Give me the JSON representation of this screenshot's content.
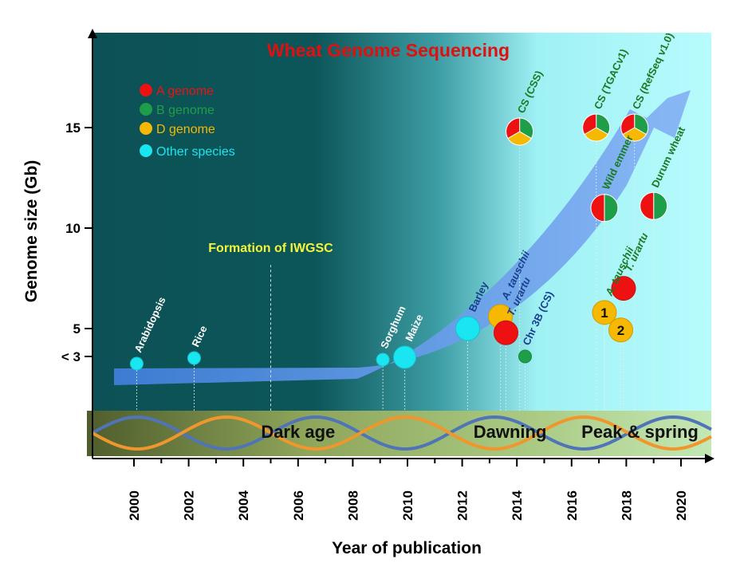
{
  "chart_data": {
    "type": "scatter",
    "title": "Wheat Genome Sequencing",
    "xlabel": "Year of publication",
    "ylabel": "Genome size (Gb)",
    "xlim": [
      2000,
      2020
    ],
    "x_ticks": [
      "2000",
      "2002",
      "2004",
      "2006",
      "2008",
      "2010",
      "2012",
      "2014",
      "2016",
      "2018",
      "2020"
    ],
    "y_ticks": [
      {
        "value": 3,
        "label": "< 3"
      },
      {
        "value": 5,
        "label": "5"
      },
      {
        "value": 10,
        "label": "10"
      },
      {
        "value": 15,
        "label": "15"
      }
    ],
    "legend": [
      {
        "name": "A genome",
        "color": "#ee1111"
      },
      {
        "name": "B genome",
        "color": "#1f9e4a"
      },
      {
        "name": "D genome",
        "color": "#f6b800"
      },
      {
        "name": "Other species",
        "color": "#19e6f0"
      }
    ],
    "legend_position": "top-left",
    "points": [
      {
        "label": "Arabidopsis",
        "x": 2000.1,
        "y": 2.1,
        "kind": "other",
        "size": "small",
        "label_color": "#ffffff"
      },
      {
        "label": "Rice",
        "x": 2002.2,
        "y": 2.8,
        "kind": "other",
        "size": "small",
        "label_color": "#ffffff"
      },
      {
        "label": "Sorghum",
        "x": 2009.1,
        "y": 2.6,
        "kind": "other",
        "size": "small",
        "label_color": "#ffffff"
      },
      {
        "label": "Maize",
        "x": 2009.9,
        "y": 2.9,
        "kind": "other",
        "size": "medium",
        "label_color": "#ffffff"
      },
      {
        "label": "Barley",
        "x": 2012.2,
        "y": 5.0,
        "kind": "other",
        "size": "large",
        "label_color": "#1a3f8f"
      },
      {
        "label": "A. tauschii",
        "x": 2013.4,
        "y": 5.6,
        "kind": "D",
        "size": "large",
        "label_color": "#1a3f8f"
      },
      {
        "label": "T. urartu",
        "x": 2013.6,
        "y": 4.7,
        "kind": "A",
        "size": "large",
        "label_color": "#1a3f8f"
      },
      {
        "label": "Chr 3B (CS)",
        "x": 2014.3,
        "y": 3.0,
        "kind": "B",
        "size": "small",
        "label_color": "#1a3f8f"
      },
      {
        "label": "CS (CSS)",
        "x": 2014.1,
        "y": 14.8,
        "kind": "ABD",
        "size": "pie",
        "label_color": "#1a7a22"
      },
      {
        "label": "CS (TGACv1)",
        "x": 2016.9,
        "y": 15.0,
        "kind": "ABD",
        "size": "pie",
        "label_color": "#1a7a22"
      },
      {
        "label": "CS (RefSeq v1.0)",
        "x": 2018.3,
        "y": 15.0,
        "kind": "ABD",
        "size": "pie",
        "label_color": "#1a7a22"
      },
      {
        "label": "Wild emmer",
        "x": 2017.2,
        "y": 11.0,
        "kind": "AB",
        "size": "pie",
        "label_color": "#1a7a22"
      },
      {
        "label": "Durum wheat",
        "x": 2019.0,
        "y": 11.1,
        "kind": "AB",
        "size": "pie",
        "label_color": "#1a7a22"
      },
      {
        "label": "T. urartu",
        "x": 2017.9,
        "y": 7.0,
        "kind": "A",
        "size": "large",
        "label_color": "#1a7a22"
      },
      {
        "label": "A. tauschii",
        "x": 2017.2,
        "y": 5.8,
        "kind": "D",
        "size": "large",
        "badge": "1",
        "label_color": "#1a7a22"
      },
      {
        "label": "",
        "x": 2017.8,
        "y": 4.9,
        "kind": "D",
        "size": "large",
        "badge": "2",
        "label_color": "#1a7a22"
      }
    ],
    "annotations": [
      {
        "text": "Formation of IWGSC",
        "x": 2005,
        "y": 8.8
      }
    ],
    "eras": [
      {
        "label": "Dark age",
        "x_from": 2004.0,
        "x_to": 2008.0
      },
      {
        "label": "Dawning",
        "x_from": 2012.5,
        "x_to": 2015.0
      },
      {
        "label": "Peak & spring",
        "x_from": 2016.5,
        "x_to": 2020.5
      }
    ],
    "trend": "exponential arrow"
  }
}
